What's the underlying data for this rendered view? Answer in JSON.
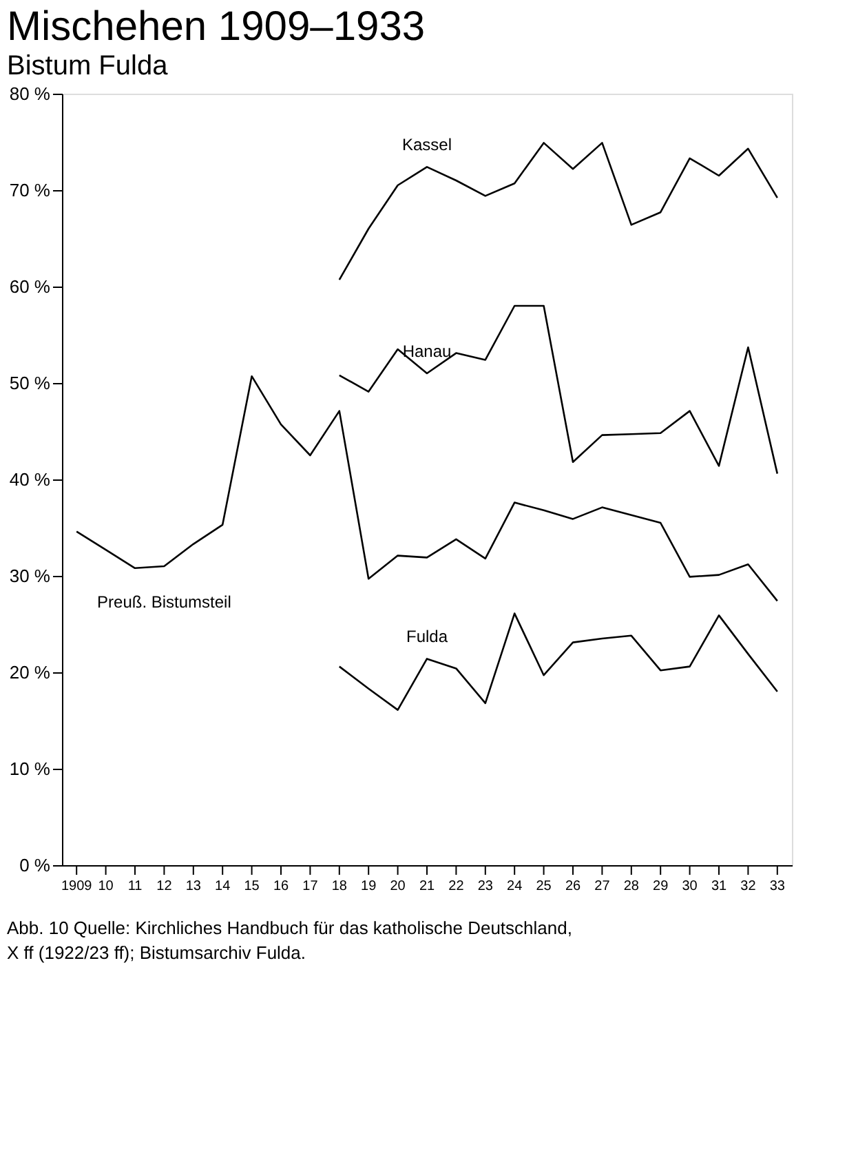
{
  "chart_data": {
    "type": "line",
    "title": "Mischehen 1909–1933",
    "subtitle": "Bistum Fulda",
    "x": [
      1909,
      1910,
      1911,
      1912,
      1913,
      1914,
      1915,
      1916,
      1917,
      1918,
      1919,
      1920,
      1921,
      1922,
      1923,
      1924,
      1925,
      1926,
      1927,
      1928,
      1929,
      1930,
      1931,
      1932,
      1933
    ],
    "series": [
      {
        "name": "Preuß. Bistumsteil",
        "color": "#000000",
        "values": [
          34.6,
          32.7,
          30.8,
          31.0,
          33.3,
          35.3,
          50.7,
          45.7,
          42.5,
          47.1,
          29.7,
          32.1,
          31.9,
          33.8,
          31.8,
          37.6,
          36.8,
          35.9,
          37.1,
          36.3,
          35.5,
          29.9,
          30.1,
          31.2,
          27.4
        ]
      },
      {
        "name": "Kassel",
        "color": "#000000",
        "values": [
          null,
          null,
          null,
          null,
          null,
          null,
          null,
          null,
          null,
          60.7,
          66.0,
          70.5,
          72.4,
          71.0,
          69.4,
          70.7,
          74.9,
          72.2,
          74.9,
          66.4,
          67.7,
          73.3,
          71.5,
          74.3,
          69.2
        ]
      },
      {
        "name": "Hanau",
        "color": "#000000",
        "values": [
          null,
          null,
          null,
          null,
          null,
          null,
          null,
          null,
          null,
          50.8,
          49.1,
          53.5,
          51.0,
          53.1,
          52.4,
          58.0,
          58.0,
          41.8,
          44.6,
          44.7,
          44.8,
          47.1,
          41.4,
          53.7,
          40.6
        ]
      },
      {
        "name": "Fulda",
        "color": "#000000",
        "values": [
          null,
          null,
          null,
          null,
          null,
          null,
          null,
          null,
          null,
          20.6,
          18.3,
          16.1,
          21.4,
          20.4,
          16.8,
          26.1,
          19.7,
          23.1,
          23.5,
          23.8,
          20.2,
          20.6,
          25.9,
          21.9,
          18.0
        ]
      }
    ],
    "xlim": [
      1908.5,
      1933.5
    ],
    "xticks": [
      {
        "value": 1909,
        "label": "1909"
      },
      {
        "value": 1910,
        "label": "10"
      },
      {
        "value": 1911,
        "label": "11"
      },
      {
        "value": 1912,
        "label": "12"
      },
      {
        "value": 1913,
        "label": "13"
      },
      {
        "value": 1914,
        "label": "14"
      },
      {
        "value": 1915,
        "label": "15"
      },
      {
        "value": 1916,
        "label": "16"
      },
      {
        "value": 1917,
        "label": "17"
      },
      {
        "value": 1918,
        "label": "18"
      },
      {
        "value": 1919,
        "label": "19"
      },
      {
        "value": 1920,
        "label": "20"
      },
      {
        "value": 1921,
        "label": "21"
      },
      {
        "value": 1922,
        "label": "22"
      },
      {
        "value": 1923,
        "label": "23"
      },
      {
        "value": 1924,
        "label": "24"
      },
      {
        "value": 1925,
        "label": "25"
      },
      {
        "value": 1926,
        "label": "26"
      },
      {
        "value": 1927,
        "label": "27"
      },
      {
        "value": 1928,
        "label": "28"
      },
      {
        "value": 1929,
        "label": "29"
      },
      {
        "value": 1930,
        "label": "30"
      },
      {
        "value": 1931,
        "label": "31"
      },
      {
        "value": 1932,
        "label": "32"
      },
      {
        "value": 1933,
        "label": "33"
      }
    ],
    "ylim": [
      0,
      80
    ],
    "yticks": [
      {
        "value": 0,
        "label": "0 %"
      },
      {
        "value": 10,
        "label": "10 %"
      },
      {
        "value": 20,
        "label": "20 %"
      },
      {
        "value": 30,
        "label": "30 %"
      },
      {
        "value": 40,
        "label": "40 %"
      },
      {
        "value": 50,
        "label": "50 %"
      },
      {
        "value": 60,
        "label": "60 %"
      },
      {
        "value": 70,
        "label": "70 %"
      },
      {
        "value": 80,
        "label": "80 %"
      }
    ],
    "annotations": [
      "Abb. 10 Quelle: Kirchliches Handbuch für das katholische Deutschland,",
      "X ff (1922/23 ff); Bistumsarchiv Fulda."
    ],
    "grid": false,
    "legend": false,
    "marker": "none",
    "line_style": "solid"
  }
}
